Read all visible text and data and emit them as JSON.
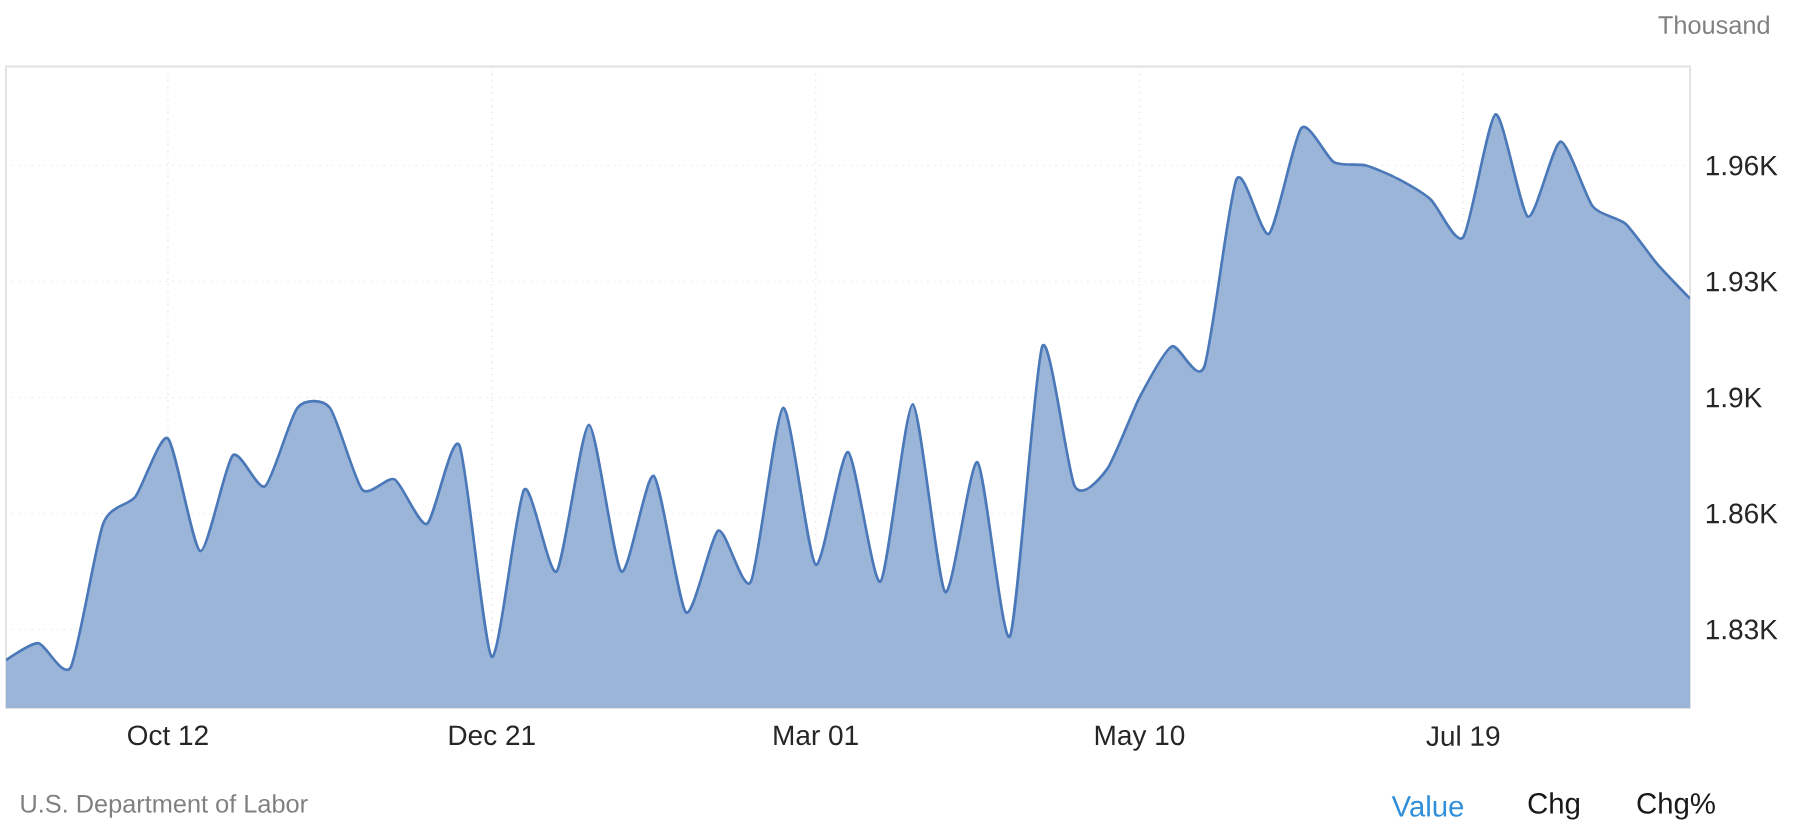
{
  "chart_data": {
    "type": "area",
    "ylabel": "Thousand",
    "color": "#4a78b8",
    "grid": true,
    "categories": [
      null,
      null,
      null,
      null,
      null,
      "Oct 12",
      null,
      null,
      null,
      null,
      null,
      null,
      null,
      null,
      null,
      "Dec 21",
      null,
      null,
      null,
      null,
      null,
      null,
      null,
      null,
      null,
      "Mar 01",
      null,
      null,
      null,
      null,
      null,
      null,
      null,
      null,
      null,
      "May 10",
      null,
      null,
      null,
      null,
      null,
      null,
      null,
      null,
      null,
      "Jul 19",
      null,
      null,
      null,
      null,
      null,
      null,
      null
    ],
    "values": [
      1819,
      1824,
      1817,
      1859,
      1867,
      1884,
      1851,
      1879,
      1870,
      1893,
      1893,
      1869,
      1872,
      1859,
      1882,
      1820,
      1869,
      1845,
      1888,
      1845,
      1873,
      1833,
      1857,
      1842,
      1893,
      1847,
      1880,
      1842,
      1894,
      1839,
      1877,
      1826,
      1911,
      1870,
      1875,
      1896,
      1911,
      1905,
      1960,
      1944,
      1975,
      1965,
      1964,
      1960,
      1954,
      1943,
      1979,
      1949,
      1971,
      1952,
      1947,
      1935,
      1925
    ],
    "ylim": [
      1805,
      1993
    ],
    "yticks": [
      {
        "value": 1828,
        "label": "1.83K"
      },
      {
        "value": 1862,
        "label": "1.86K"
      },
      {
        "value": 1896,
        "label": "1.9K"
      },
      {
        "value": 1930,
        "label": "1.93K"
      },
      {
        "value": 1964,
        "label": "1.96K"
      }
    ],
    "annotations": [
      "U.S. Department of Labor",
      "Value",
      "Chg",
      "Chg%"
    ]
  }
}
